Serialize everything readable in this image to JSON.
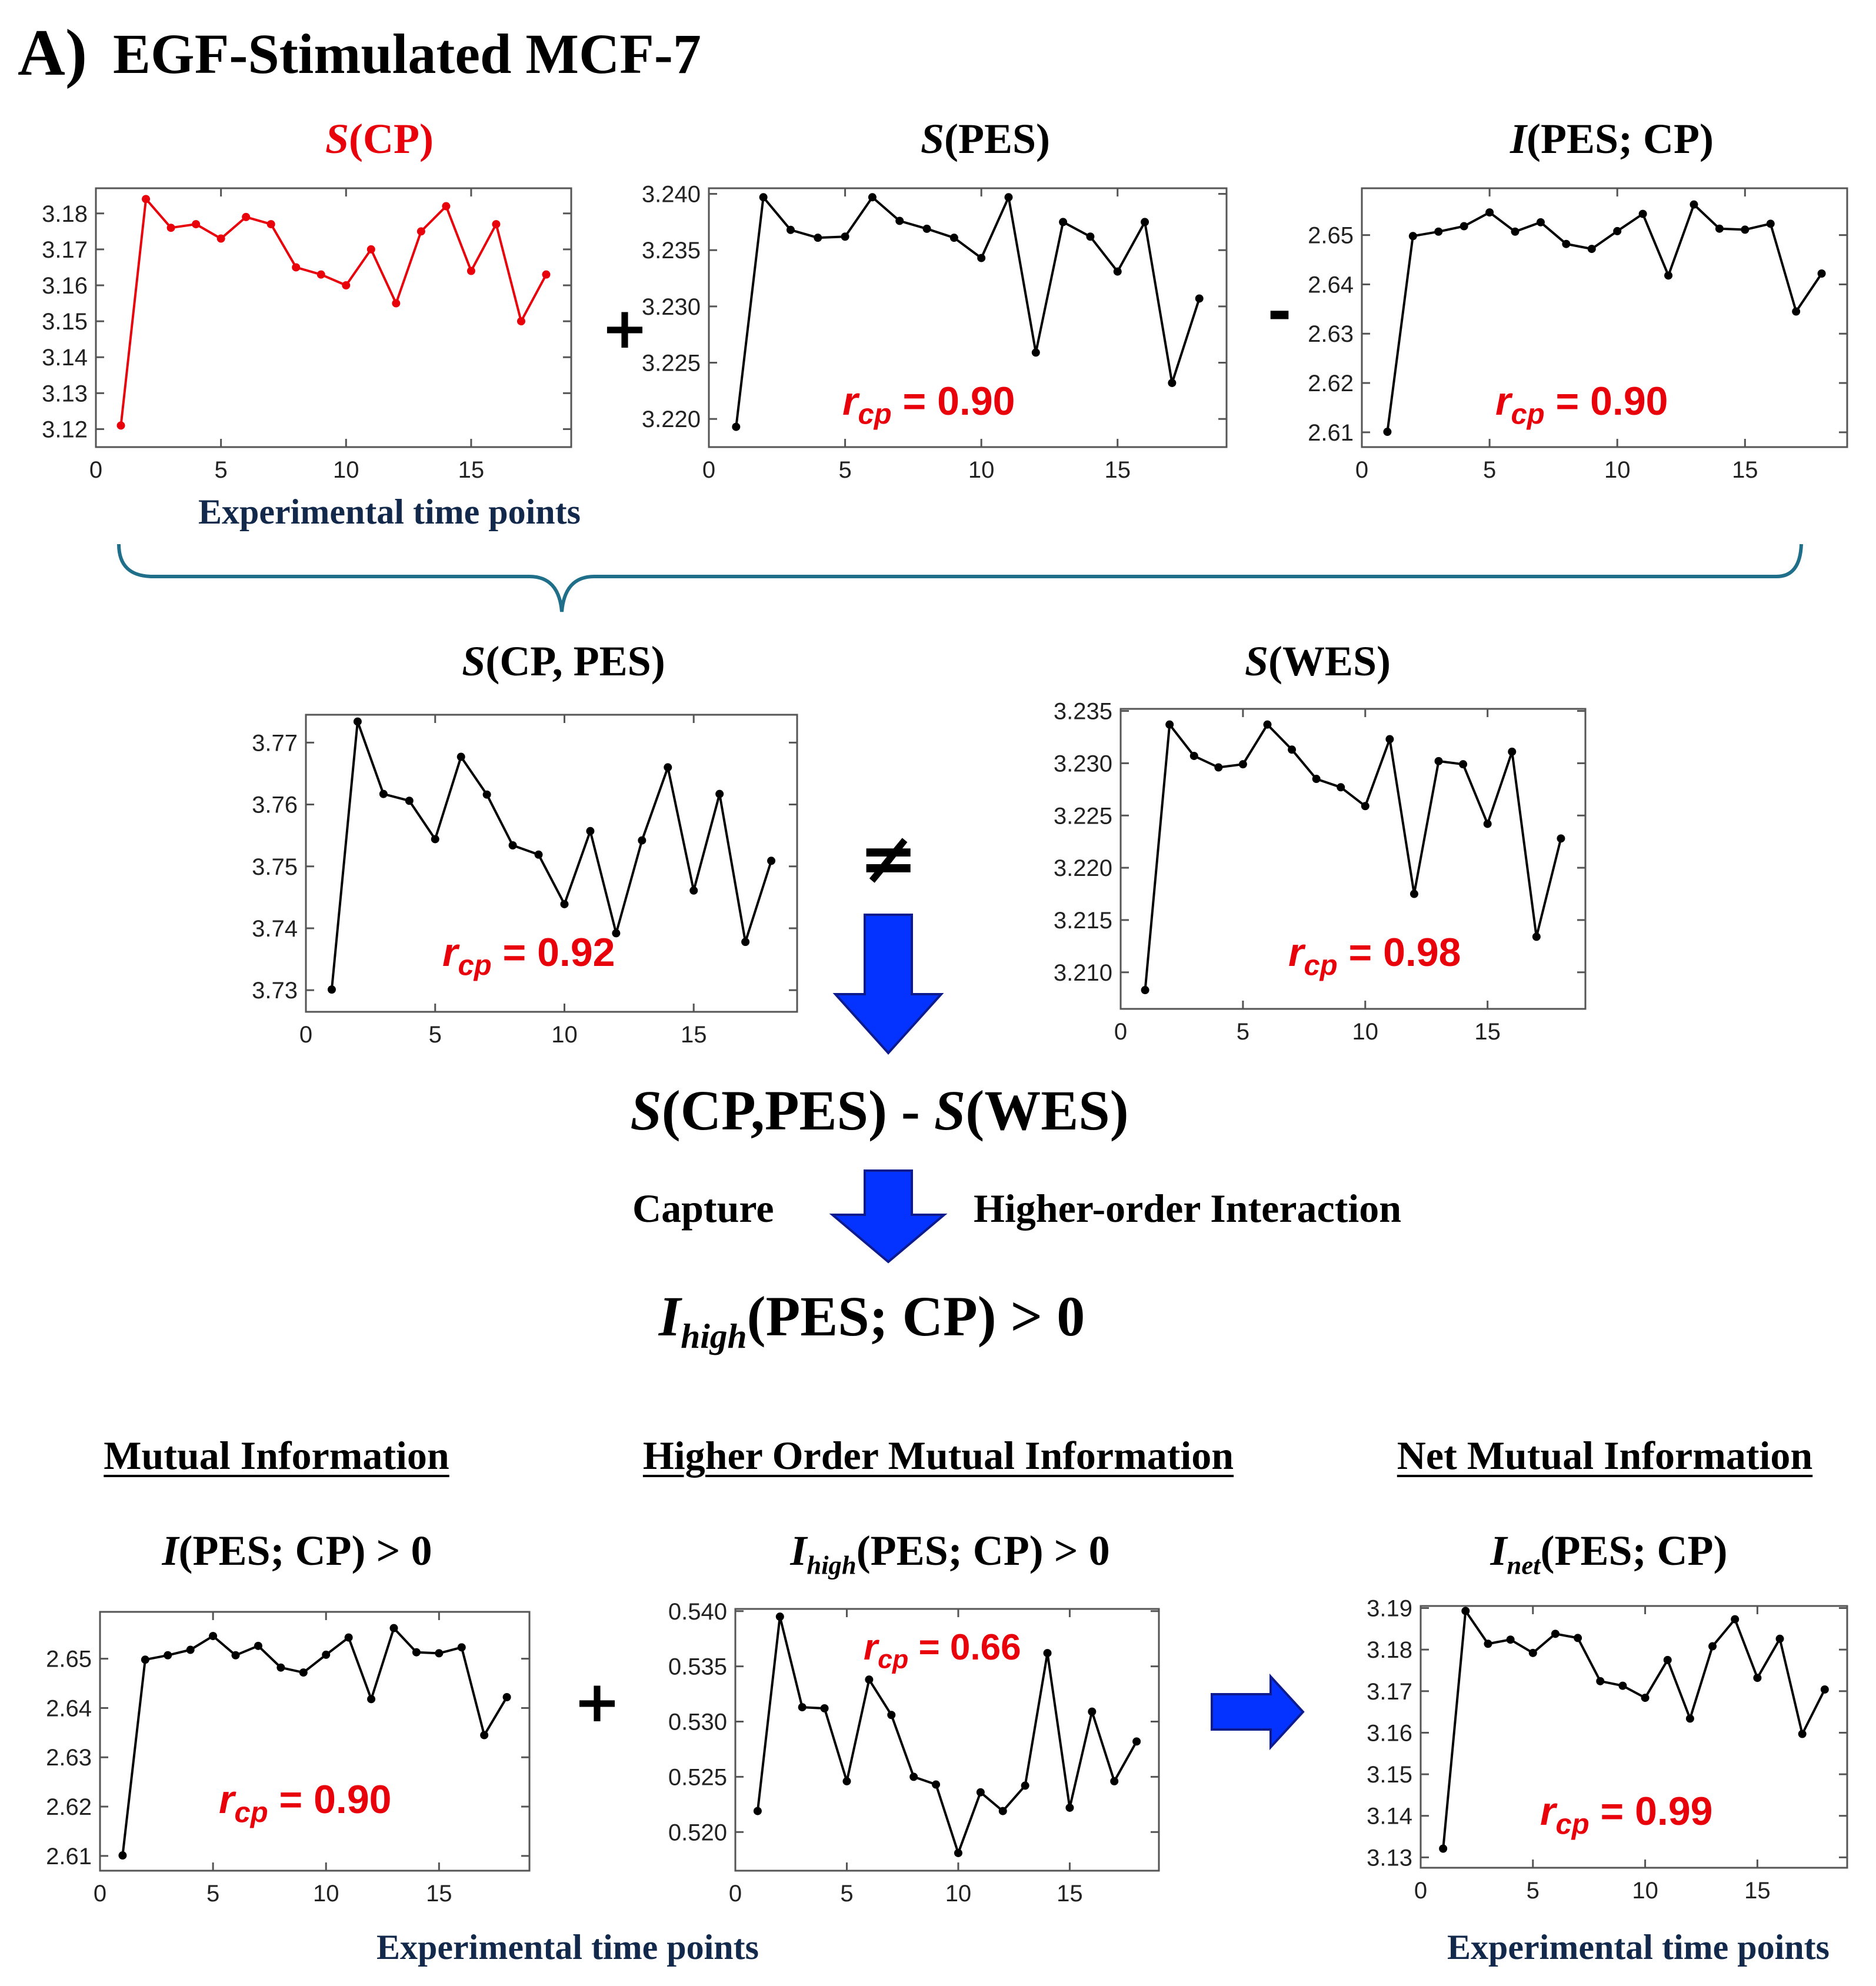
{
  "panel_label": "A)",
  "panel_title": "EGF-Stimulated MCF-7",
  "titles": {
    "s_cp": "S(CP)",
    "s_pes": "S(PES)",
    "i_pes_cp": "I(PES; CP)",
    "s_cp_pes": "S(CP, PES)",
    "s_wes": "S(WES)",
    "difference": "S(CP,PES) - S(WES)",
    "i_high_result": "I_high(PES; CP) > 0",
    "mi_formula": "I(PES; CP) > 0",
    "high_mi_formula": "I_high(PES; CP) > 0",
    "net_mi_formula": "I_net(PES; CP)"
  },
  "section_headers": {
    "mutual_information": "Mutual Information",
    "higher_order": "Higher Order Mutual Information",
    "net_mutual_information": "Net Mutual Information"
  },
  "operators": {
    "plus": "+",
    "minus": "-",
    "not_equal": "≠"
  },
  "flow_labels": {
    "capture": "Capture",
    "higher_order_interaction": "Higher-order Interaction"
  },
  "axis_caption": "Experimental time points",
  "colors": {
    "red": "#e8000b",
    "arrow_blue": "#0433ff",
    "brace": "#1f6f8b",
    "caption_blue": "#13294b",
    "line": "#000000"
  },
  "chart_data": [
    {
      "id": "s_cp",
      "type": "line",
      "title": "S(CP)",
      "xlabel": "Experimental time points",
      "color": "#e8000b",
      "x": [
        1,
        2,
        3,
        4,
        5,
        6,
        7,
        8,
        9,
        10,
        11,
        12,
        13,
        14,
        15,
        16,
        17,
        18
      ],
      "y": [
        3.121,
        3.184,
        3.176,
        3.177,
        3.173,
        3.179,
        3.177,
        3.165,
        3.163,
        3.16,
        3.17,
        3.155,
        3.175,
        3.182,
        3.164,
        3.177,
        3.15,
        3.163
      ],
      "xlim": [
        0,
        19
      ],
      "ylim": [
        3.115,
        3.187
      ],
      "xticks": [
        0,
        5,
        10,
        15
      ],
      "yticks": [
        3.12,
        3.13,
        3.14,
        3.15,
        3.16,
        3.17,
        3.18
      ],
      "ytick_labels": [
        "3.12",
        "3.13",
        "3.14",
        "3.15",
        "3.16",
        "3.17",
        "3.18"
      ],
      "r_cp": null
    },
    {
      "id": "s_pes",
      "type": "line",
      "title": "S(PES)",
      "color": "#000000",
      "x": [
        1,
        2,
        3,
        4,
        5,
        6,
        7,
        8,
        9,
        10,
        11,
        12,
        13,
        14,
        15,
        16,
        17,
        18
      ],
      "y": [
        3.2193,
        3.2397,
        3.2368,
        3.2361,
        3.2362,
        3.2397,
        3.2376,
        3.2369,
        3.2361,
        3.2343,
        3.2397,
        3.2259,
        3.2375,
        3.2362,
        3.2331,
        3.2375,
        3.2232,
        3.2307
      ],
      "xlim": [
        0,
        19
      ],
      "ylim": [
        3.2175,
        3.2405
      ],
      "xticks": [
        0,
        5,
        10,
        15
      ],
      "yticks": [
        3.22,
        3.225,
        3.23,
        3.235,
        3.24
      ],
      "ytick_labels": [
        "3.220",
        "3.225",
        "3.230",
        "3.235",
        "3.240"
      ],
      "r_cp": "0.90"
    },
    {
      "id": "i_pes_cp",
      "type": "line",
      "title": "I(PES; CP)",
      "color": "#000000",
      "x": [
        1,
        2,
        3,
        4,
        5,
        6,
        7,
        8,
        9,
        10,
        11,
        12,
        13,
        14,
        15,
        16,
        17,
        18
      ],
      "y": [
        2.6101,
        2.6498,
        2.6507,
        2.6518,
        2.6546,
        2.6507,
        2.6526,
        2.6482,
        2.6472,
        2.6508,
        2.6543,
        2.6418,
        2.6562,
        2.6513,
        2.6511,
        2.6523,
        2.6345,
        2.6422
      ],
      "xlim": [
        0,
        19
      ],
      "ylim": [
        2.607,
        2.6595
      ],
      "xticks": [
        0,
        5,
        10,
        15
      ],
      "yticks": [
        2.61,
        2.62,
        2.63,
        2.64,
        2.65
      ],
      "ytick_labels": [
        "2.61",
        "2.62",
        "2.63",
        "2.64",
        "2.65"
      ],
      "r_cp": "0.90"
    },
    {
      "id": "s_cp_pes",
      "type": "line",
      "title": "S(CP, PES)",
      "color": "#000000",
      "x": [
        1,
        2,
        3,
        4,
        5,
        6,
        7,
        8,
        9,
        10,
        11,
        12,
        13,
        14,
        15,
        16,
        17,
        18
      ],
      "y": [
        3.7301,
        3.7734,
        3.7617,
        3.7606,
        3.7544,
        3.7677,
        3.7616,
        3.7534,
        3.7519,
        3.7439,
        3.7557,
        3.7392,
        3.7542,
        3.766,
        3.7461,
        3.7617,
        3.7378,
        3.7509
      ],
      "xlim": [
        0,
        19
      ],
      "ylim": [
        3.7265,
        3.7745
      ],
      "xticks": [
        0,
        5,
        10,
        15
      ],
      "yticks": [
        3.73,
        3.74,
        3.75,
        3.76,
        3.77
      ],
      "ytick_labels": [
        "3.73",
        "3.74",
        "3.75",
        "3.76",
        "3.77"
      ],
      "r_cp": "0.92"
    },
    {
      "id": "s_wes",
      "type": "line",
      "title": "S(WES)",
      "color": "#000000",
      "x": [
        1,
        2,
        3,
        4,
        5,
        6,
        7,
        8,
        9,
        10,
        11,
        12,
        13,
        14,
        15,
        16,
        17,
        18
      ],
      "y": [
        3.2083,
        3.2337,
        3.2307,
        3.2296,
        3.2299,
        3.2337,
        3.2313,
        3.2285,
        3.2277,
        3.2259,
        3.2323,
        3.2175,
        3.2302,
        3.2299,
        3.2242,
        3.2311,
        3.2134,
        3.2228
      ],
      "xlim": [
        0,
        19
      ],
      "ylim": [
        3.2065,
        3.2352
      ],
      "xticks": [
        0,
        5,
        10,
        15
      ],
      "yticks": [
        3.21,
        3.215,
        3.22,
        3.225,
        3.23,
        3.235
      ],
      "ytick_labels": [
        "3.210",
        "3.215",
        "3.220",
        "3.225",
        "3.230",
        "3.235"
      ],
      "r_cp": "0.98"
    },
    {
      "id": "mi_bottom",
      "type": "line",
      "title": "I(PES; CP) > 0",
      "color": "#000000",
      "x": [
        1,
        2,
        3,
        4,
        5,
        6,
        7,
        8,
        9,
        10,
        11,
        12,
        13,
        14,
        15,
        16,
        17,
        18
      ],
      "y": [
        2.6101,
        2.6498,
        2.6507,
        2.6518,
        2.6546,
        2.6507,
        2.6526,
        2.6482,
        2.6472,
        2.6508,
        2.6543,
        2.6418,
        2.6562,
        2.6513,
        2.6511,
        2.6523,
        2.6345,
        2.6422
      ],
      "xlim": [
        0,
        19
      ],
      "ylim": [
        2.607,
        2.6595
      ],
      "xticks": [
        0,
        5,
        10,
        15
      ],
      "yticks": [
        2.61,
        2.62,
        2.63,
        2.64,
        2.65
      ],
      "ytick_labels": [
        "2.61",
        "2.62",
        "2.63",
        "2.64",
        "2.65"
      ],
      "r_cp": "0.90"
    },
    {
      "id": "high_mi",
      "type": "line",
      "title": "I_high(PES; CP) > 0",
      "color": "#000000",
      "x": [
        1,
        2,
        3,
        4,
        5,
        6,
        7,
        8,
        9,
        10,
        11,
        12,
        13,
        14,
        15,
        16,
        17,
        18
      ],
      "y": [
        0.5219,
        0.5395,
        0.5313,
        0.5312,
        0.5246,
        0.5338,
        0.5306,
        0.525,
        0.5243,
        0.5181,
        0.5236,
        0.5219,
        0.5242,
        0.5362,
        0.5222,
        0.5309,
        0.5246,
        0.5282
      ],
      "xlim": [
        0,
        19
      ],
      "ylim": [
        0.5165,
        0.5402
      ],
      "xticks": [
        0,
        5,
        10,
        15
      ],
      "yticks": [
        0.52,
        0.525,
        0.53,
        0.535,
        0.54
      ],
      "ytick_labels": [
        "0.520",
        "0.525",
        "0.530",
        "0.535",
        "0.540"
      ],
      "r_cp": "0.66"
    },
    {
      "id": "net_mi",
      "type": "line",
      "title": "I_net(PES; CP)",
      "xlabel": "Experimental time points",
      "color": "#000000",
      "x": [
        1,
        2,
        3,
        4,
        5,
        6,
        7,
        8,
        9,
        10,
        11,
        12,
        13,
        14,
        15,
        16,
        17,
        18
      ],
      "y": [
        3.1321,
        3.1893,
        3.1814,
        3.1824,
        3.1792,
        3.1838,
        3.1828,
        3.1724,
        3.1713,
        3.1684,
        3.1775,
        3.1634,
        3.1808,
        3.1873,
        3.1732,
        3.1826,
        3.1597,
        3.1704
      ],
      "xlim": [
        0,
        19
      ],
      "ylim": [
        3.1275,
        3.1905
      ],
      "xticks": [
        0,
        5,
        10,
        15
      ],
      "yticks": [
        3.13,
        3.14,
        3.15,
        3.16,
        3.17,
        3.18,
        3.19
      ],
      "ytick_labels": [
        "3.13",
        "3.14",
        "3.15",
        "3.16",
        "3.17",
        "3.18",
        "3.19"
      ],
      "r_cp": "0.99"
    }
  ]
}
